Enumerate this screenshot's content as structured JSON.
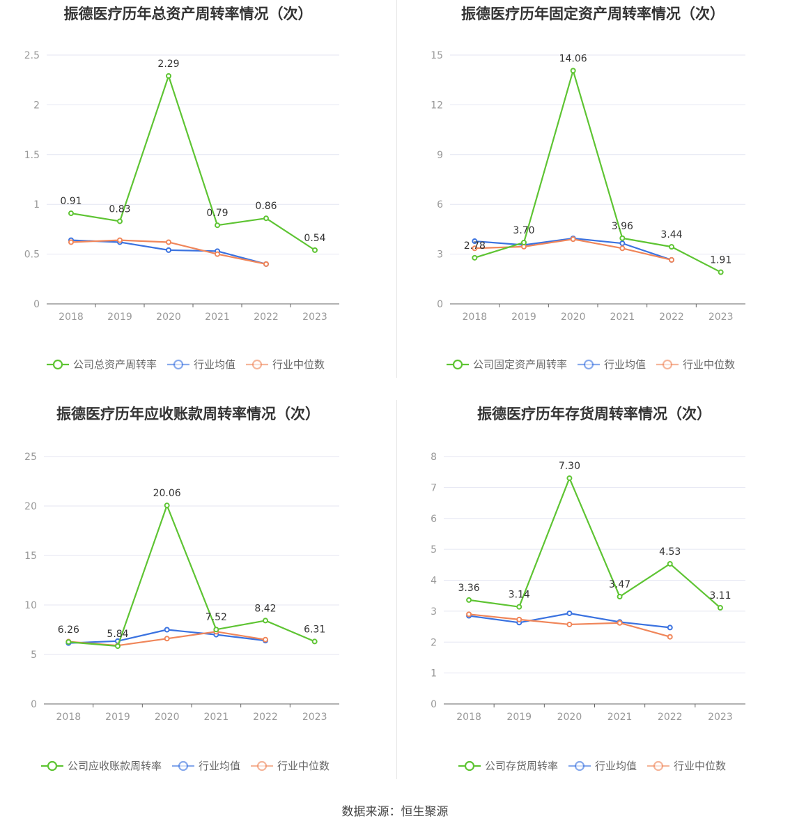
{
  "footer": {
    "source": "数据来源：恒生聚源"
  },
  "colors": {
    "company": "#5ec433",
    "avg": "#3a72e0",
    "median": "#f0865a",
    "grid": "#e4e6f2",
    "axis": "#666666"
  },
  "chart_data": [
    {
      "type": "line",
      "title": "振德医疗历年总资产周转率情况（次）",
      "x": [
        "2018",
        "2019",
        "2020",
        "2021",
        "2022",
        "2023"
      ],
      "yticks": [
        "0",
        "0.5",
        "1",
        "1.5",
        "2",
        "2.5"
      ],
      "ylim": [
        0,
        2.5
      ],
      "legend_position": "bottom",
      "series": [
        {
          "name": "公司总资产周转率",
          "color": "#5ec433",
          "values": [
            0.91,
            0.83,
            2.29,
            0.79,
            0.86,
            0.54
          ],
          "labels": [
            "0.91",
            "0.83",
            "2.29",
            "0.79",
            "0.86",
            "0.54"
          ]
        },
        {
          "name": "行业均值",
          "color": "#3a72e0",
          "values": [
            0.64,
            0.62,
            0.54,
            0.53,
            0.4,
            null
          ]
        },
        {
          "name": "行业中位数",
          "color": "#f0865a",
          "values": [
            0.62,
            0.64,
            0.62,
            0.5,
            0.4,
            null
          ]
        }
      ]
    },
    {
      "type": "line",
      "title": "振德医疗历年固定资产周转率情况（次）",
      "x": [
        "2018",
        "2019",
        "2020",
        "2021",
        "2022",
        "2023"
      ],
      "yticks": [
        "0",
        "3",
        "6",
        "9",
        "12",
        "15"
      ],
      "ylim": [
        0,
        15
      ],
      "legend_position": "bottom",
      "series": [
        {
          "name": "公司固定资产周转率",
          "color": "#5ec433",
          "values": [
            2.78,
            3.7,
            14.06,
            3.96,
            3.44,
            1.91
          ],
          "labels": [
            "2.78",
            "3.70",
            "14.06",
            "3.96",
            "3.44",
            "1.91"
          ]
        },
        {
          "name": "行业均值",
          "color": "#3a72e0",
          "values": [
            3.78,
            3.55,
            3.95,
            3.65,
            2.65,
            null
          ]
        },
        {
          "name": "行业中位数",
          "color": "#f0865a",
          "values": [
            3.35,
            3.45,
            3.9,
            3.35,
            2.65,
            null
          ]
        }
      ]
    },
    {
      "type": "line",
      "title": "振德医疗历年应收账款周转率情况（次）",
      "x": [
        "2018",
        "2019",
        "2020",
        "2021",
        "2022",
        "2023"
      ],
      "yticks": [
        "0",
        "5",
        "10",
        "15",
        "20",
        "25"
      ],
      "ylim": [
        0,
        25
      ],
      "legend_position": "bottom",
      "series": [
        {
          "name": "公司应收账款周转率",
          "color": "#5ec433",
          "values": [
            6.26,
            5.84,
            20.06,
            7.52,
            8.42,
            6.31
          ],
          "labels": [
            "6.26",
            "5.84",
            "20.06",
            "7.52",
            "8.42",
            "6.31"
          ]
        },
        {
          "name": "行业均值",
          "color": "#3a72e0",
          "values": [
            6.15,
            6.35,
            7.5,
            7.0,
            6.4,
            null
          ]
        },
        {
          "name": "行业中位数",
          "color": "#f0865a",
          "values": [
            6.3,
            5.9,
            6.6,
            7.3,
            6.5,
            null
          ]
        }
      ]
    },
    {
      "type": "line",
      "title": "振德医疗历年存货周转率情况（次）",
      "x": [
        "2018",
        "2019",
        "2020",
        "2021",
        "2022",
        "2023"
      ],
      "yticks": [
        "0",
        "1",
        "2",
        "3",
        "4",
        "5",
        "6",
        "7",
        "8"
      ],
      "ylim": [
        0,
        8
      ],
      "legend_position": "bottom",
      "series": [
        {
          "name": "公司存货周转率",
          "color": "#5ec433",
          "values": [
            3.36,
            3.14,
            7.3,
            3.47,
            4.53,
            3.11
          ],
          "labels": [
            "3.36",
            "3.14",
            "7.30",
            "3.47",
            "4.53",
            "3.11"
          ]
        },
        {
          "name": "行业均值",
          "color": "#3a72e0",
          "values": [
            2.85,
            2.63,
            2.93,
            2.65,
            2.47,
            null
          ]
        },
        {
          "name": "行业中位数",
          "color": "#f0865a",
          "values": [
            2.9,
            2.73,
            2.57,
            2.62,
            2.17,
            null
          ]
        }
      ]
    }
  ]
}
